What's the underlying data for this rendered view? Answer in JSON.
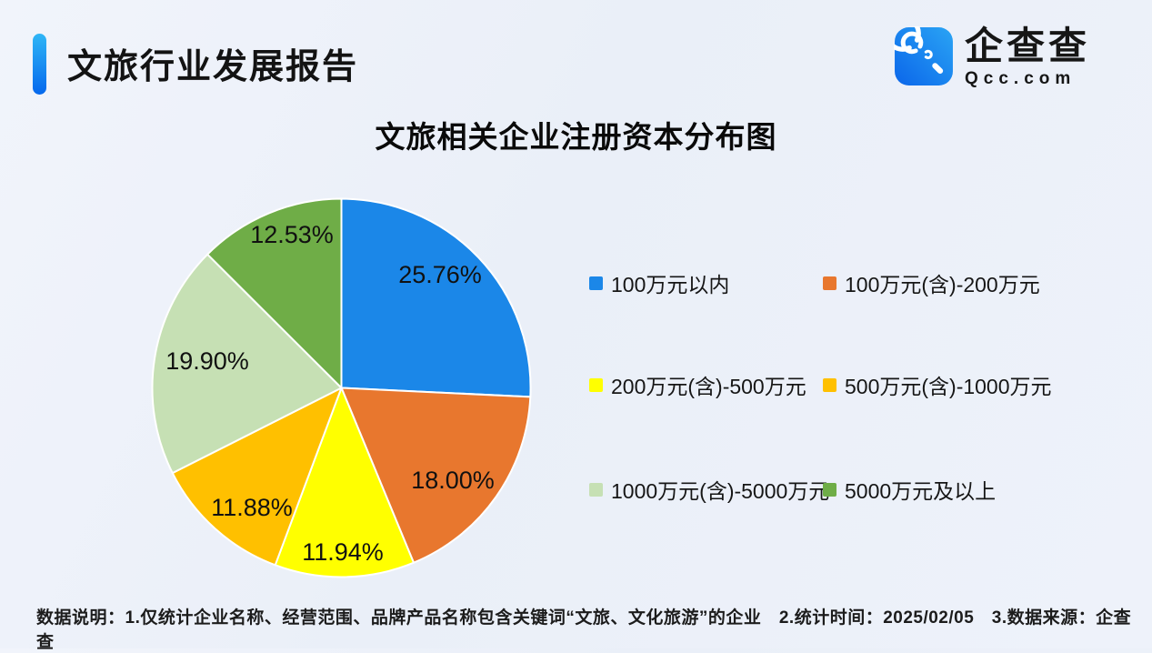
{
  "page": {
    "background": "#edf1f9"
  },
  "header": {
    "title": "文旅行业发展报告",
    "accent_bar": {
      "color_top": "#2fb6f6",
      "color_bottom": "#0568ed"
    },
    "brand": {
      "name": "企查查",
      "domain": "Qcc.com",
      "icon": "qcc-magnifier-icon",
      "icon_color_top": "#2aa4f4",
      "icon_color_bottom": "#0b66ea"
    }
  },
  "chart_data": {
    "type": "pie",
    "title": "文旅相关企业注册资本分布图",
    "unit": "percent",
    "start_angle_deg": 0,
    "direction": "clockwise",
    "legend_position": "right",
    "slices": [
      {
        "label": "100万元以内",
        "value": 25.76,
        "display": "25.76%",
        "color": "#1b87e8"
      },
      {
        "label": "100万元(含)-200万元",
        "value": 18.0,
        "display": "18.00%",
        "color": "#e8772e"
      },
      {
        "label": "200万元(含)-500万元",
        "value": 11.94,
        "display": "11.94%",
        "color": "#ffff00"
      },
      {
        "label": "500万元(含)-1000万元",
        "value": 11.88,
        "display": "11.88%",
        "color": "#ffc000"
      },
      {
        "label": "1000万元(含)-5000万元",
        "value": 19.9,
        "display": "19.90%",
        "color": "#c6e0b4"
      },
      {
        "label": "5000万元及以上",
        "value": 12.53,
        "display": "12.53%",
        "color": "#6fad47"
      }
    ]
  },
  "footer": {
    "text": "数据说明：1.仅统计企业名称、经营范围、品牌产品名称包含关键词“文旅、文化旅游”的企业　2.统计时间：2025/02/05　3.数据来源：企查查"
  }
}
